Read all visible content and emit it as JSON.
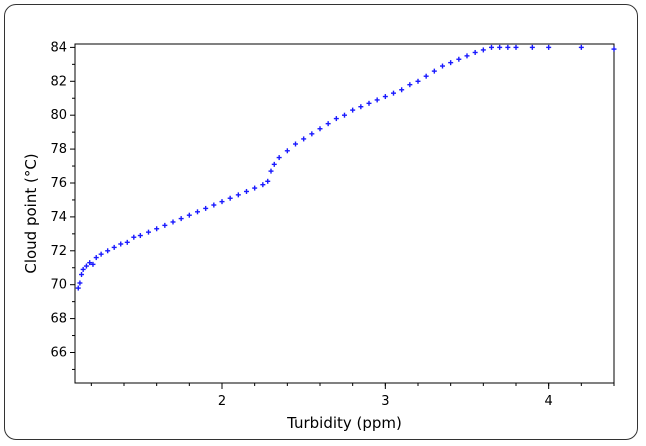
{
  "chart_data": {
    "type": "scatter",
    "title": "",
    "xlabel": "Turbidity (ppm)",
    "ylabel": "Cloud point (°C)",
    "xlim": [
      1.1,
      4.4
    ],
    "ylim": [
      64.2,
      84.2
    ],
    "x_ticks": [
      2,
      3,
      4
    ],
    "x_tick_labels": [
      "2",
      "3",
      "4"
    ],
    "y_ticks": [
      66,
      68,
      70,
      72,
      74,
      76,
      78,
      80,
      82,
      84
    ],
    "y_tick_labels": [
      "66",
      "68",
      "70",
      "72",
      "74",
      "76",
      "78",
      "80",
      "82",
      "84"
    ],
    "grid": false,
    "marker": "plus",
    "series": [
      {
        "color": "#1a1aff",
        "points": [
          [
            1.12,
            69.8
          ],
          [
            1.13,
            70.1
          ],
          [
            1.14,
            70.6
          ],
          [
            1.15,
            70.9
          ],
          [
            1.17,
            71.1
          ],
          [
            1.19,
            71.3
          ],
          [
            1.21,
            71.2
          ],
          [
            1.23,
            71.6
          ],
          [
            1.26,
            71.8
          ],
          [
            1.3,
            72.0
          ],
          [
            1.34,
            72.2
          ],
          [
            1.38,
            72.4
          ],
          [
            1.42,
            72.5
          ],
          [
            1.46,
            72.8
          ],
          [
            1.5,
            72.9
          ],
          [
            1.55,
            73.1
          ],
          [
            1.6,
            73.3
          ],
          [
            1.65,
            73.5
          ],
          [
            1.7,
            73.7
          ],
          [
            1.75,
            73.9
          ],
          [
            1.8,
            74.1
          ],
          [
            1.85,
            74.3
          ],
          [
            1.9,
            74.5
          ],
          [
            1.95,
            74.7
          ],
          [
            2.0,
            74.9
          ],
          [
            2.05,
            75.1
          ],
          [
            2.1,
            75.3
          ],
          [
            2.15,
            75.5
          ],
          [
            2.2,
            75.7
          ],
          [
            2.25,
            75.9
          ],
          [
            2.28,
            76.1
          ],
          [
            2.3,
            76.7
          ],
          [
            2.32,
            77.1
          ],
          [
            2.35,
            77.5
          ],
          [
            2.4,
            77.9
          ],
          [
            2.45,
            78.3
          ],
          [
            2.5,
            78.6
          ],
          [
            2.55,
            78.9
          ],
          [
            2.6,
            79.2
          ],
          [
            2.65,
            79.5
          ],
          [
            2.7,
            79.8
          ],
          [
            2.75,
            80.0
          ],
          [
            2.8,
            80.3
          ],
          [
            2.85,
            80.5
          ],
          [
            2.9,
            80.7
          ],
          [
            2.95,
            80.9
          ],
          [
            3.0,
            81.1
          ],
          [
            3.05,
            81.3
          ],
          [
            3.1,
            81.5
          ],
          [
            3.15,
            81.8
          ],
          [
            3.2,
            82.0
          ],
          [
            3.25,
            82.3
          ],
          [
            3.3,
            82.6
          ],
          [
            3.35,
            82.9
          ],
          [
            3.4,
            83.1
          ],
          [
            3.45,
            83.3
          ],
          [
            3.5,
            83.5
          ],
          [
            3.55,
            83.7
          ],
          [
            3.6,
            83.85
          ],
          [
            3.65,
            84.0
          ],
          [
            3.7,
            84.0
          ],
          [
            3.75,
            84.0
          ],
          [
            3.8,
            84.0
          ],
          [
            3.9,
            84.0
          ],
          [
            4.0,
            84.0
          ],
          [
            4.2,
            84.0
          ],
          [
            4.4,
            83.9
          ]
        ]
      }
    ]
  }
}
